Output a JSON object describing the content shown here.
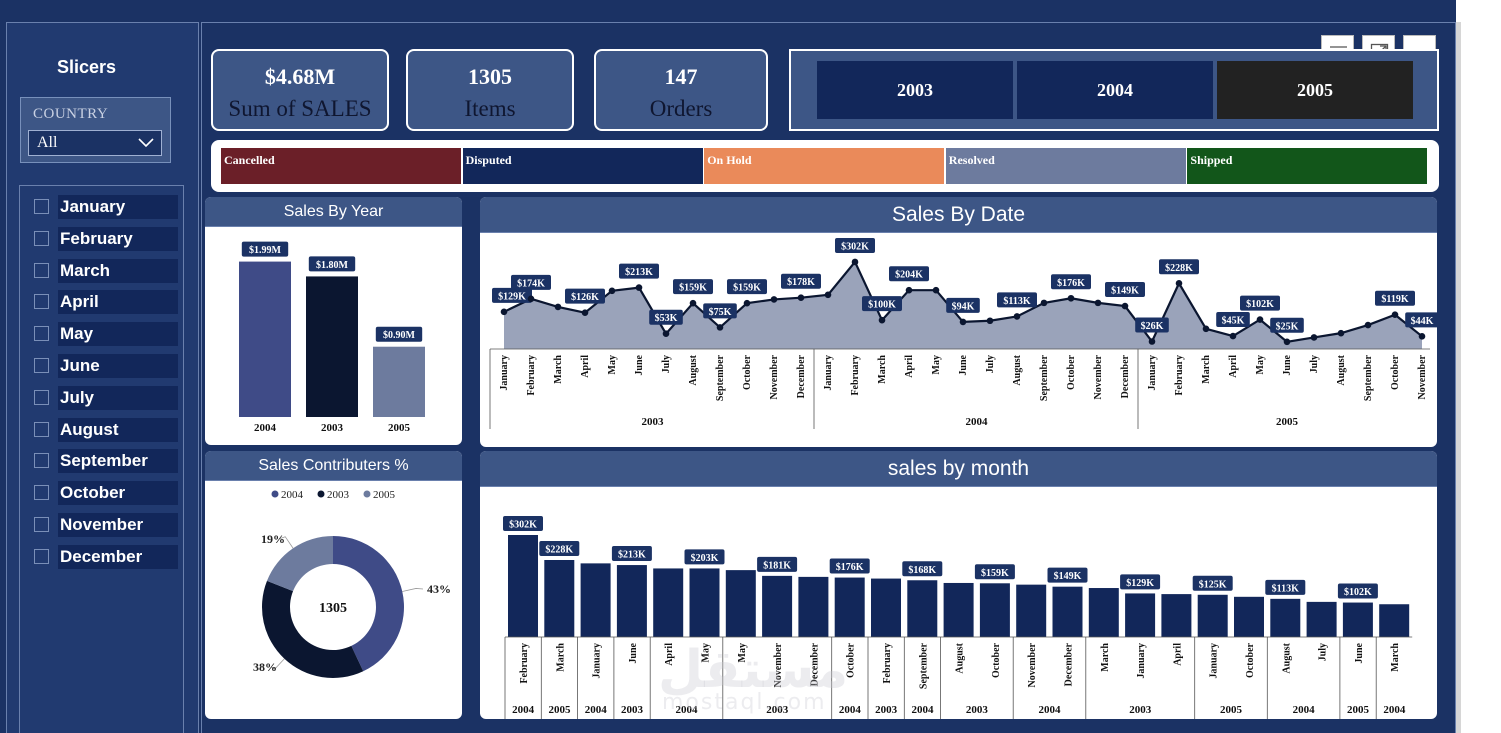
{
  "slicers": {
    "title": "Slicers",
    "country_label": "COUNTRY",
    "country_value": "All",
    "months": [
      "January",
      "February",
      "March",
      "April",
      "May",
      "June",
      "July",
      "August",
      "September",
      "October",
      "November",
      "December"
    ]
  },
  "kpis": [
    {
      "value": "$4.68M",
      "label": "Sum of SALES"
    },
    {
      "value": "1305",
      "label": "Items"
    },
    {
      "value": "147",
      "label": "Orders"
    }
  ],
  "year_buttons": [
    "2003",
    "2004",
    "2005"
  ],
  "status": [
    {
      "label": "Cancelled",
      "color": "#6b1f28"
    },
    {
      "label": "Disputed",
      "color": "#12275a"
    },
    {
      "label": "On Hold",
      "color": "#ea8a5a"
    },
    {
      "label": "Resolved",
      "color": "#6d7b9e"
    },
    {
      "label": "Shipped",
      "color": "#12561a"
    }
  ],
  "titles": {
    "sales_by_year": "Sales By Year",
    "sales_by_date": "Sales By Date",
    "contributors": "Sales Contributers %",
    "sales_by_month": "sales by month"
  },
  "toolbar": {
    "filter_icon": "filter-icon",
    "focus_icon": "focus-mode-icon",
    "more_icon": "more-options-icon"
  },
  "chart_data": [
    {
      "type": "bar",
      "title": "Sales By Year",
      "categories": [
        "2004",
        "2003",
        "2005"
      ],
      "values": [
        1.99,
        1.8,
        0.9
      ],
      "labels": [
        "$1.99M",
        "$1.80M",
        "$0.90M"
      ],
      "colors": [
        "#3f4b87",
        "#0b1630",
        "#6d7b9e"
      ],
      "ylim": [
        0,
        2.1
      ]
    },
    {
      "type": "area",
      "title": "Sales By Date",
      "years": [
        "2003",
        "2004",
        "2005"
      ],
      "months": [
        "January",
        "February",
        "March",
        "April",
        "May",
        "June",
        "July",
        "August",
        "September",
        "October",
        "November",
        "December"
      ],
      "values": [
        129,
        174,
        146,
        126,
        202,
        213,
        53,
        159,
        75,
        159,
        172,
        178,
        188,
        302,
        100,
        204,
        204,
        94,
        98,
        113,
        160,
        176,
        160,
        149,
        26,
        228,
        70,
        45,
        102,
        25,
        40,
        55,
        83,
        119,
        44
      ],
      "labels": {
        "0": "$129K",
        "1": "$174K",
        "3": "$126K",
        "5": "$213K",
        "6": "$53K",
        "7": "$159K",
        "8": "$75K",
        "9": "$159K",
        "11": "$178K",
        "13": "$302K",
        "14": "$100K",
        "15": "$204K",
        "17": "$94K",
        "19": "$113K",
        "21": "$176K",
        "23": "$149K",
        "24": "$26K",
        "25": "$228K",
        "27": "$45K",
        "28": "$102K",
        "29": "$25K",
        "33": "$119K",
        "34": "$44K"
      },
      "ylim": [
        0,
        340
      ]
    },
    {
      "type": "pie",
      "title": "Sales Contributers %",
      "center_label": "1305",
      "legend": [
        "2004",
        "2003",
        "2005"
      ],
      "values": [
        43,
        38,
        19
      ],
      "labels": [
        "43%",
        "38%",
        "19%"
      ],
      "colors": [
        "#3f4b87",
        "#0b1630",
        "#6d7b9e"
      ]
    },
    {
      "type": "bar",
      "title": "sales by month",
      "categories": [
        "February",
        "March",
        "January",
        "June",
        "April",
        "May",
        "May",
        "November",
        "December",
        "October",
        "February",
        "September",
        "August",
        "October",
        "November",
        "December",
        "March",
        "January",
        "April",
        "January",
        "October",
        "August",
        "July",
        "June",
        "March"
      ],
      "values": [
        302,
        228,
        218,
        213,
        203,
        203,
        198,
        181,
        178,
        176,
        173,
        168,
        160,
        159,
        155,
        149,
        145,
        129,
        127,
        125,
        119,
        113,
        104,
        102,
        97
      ],
      "labels": {
        "0": "$302K",
        "1": "$228K",
        "3": "$213K",
        "5": "$203K",
        "7": "$181K",
        "9": "$176K",
        "11": "$168K",
        "13": "$159K",
        "15": "$149K",
        "17": "$129K",
        "19": "$125K",
        "21": "$113K",
        "23": "$102K"
      },
      "year_groups": [
        {
          "label": "2004",
          "span": 1
        },
        {
          "label": "2005",
          "span": 1
        },
        {
          "label": "2004",
          "span": 1
        },
        {
          "label": "2003",
          "span": 1
        },
        {
          "label": "2004",
          "span": 2
        },
        {
          "label": "2003",
          "span": 3
        },
        {
          "label": "2004",
          "span": 1
        },
        {
          "label": "2003",
          "span": 1
        },
        {
          "label": "2004",
          "span": 1
        },
        {
          "label": "2003",
          "span": 2
        },
        {
          "label": "2004",
          "span": 2
        },
        {
          "label": "2003",
          "span": 3
        },
        {
          "label": "2005",
          "span": 2
        },
        {
          "label": "2004",
          "span": 2
        },
        {
          "label": "2005",
          "span": 1
        },
        {
          "label": "2004",
          "span": 1
        }
      ],
      "ylim": [
        0,
        320
      ]
    }
  ],
  "watermark": {
    "arabic": "مستقل",
    "latin": "mostaql.com"
  }
}
